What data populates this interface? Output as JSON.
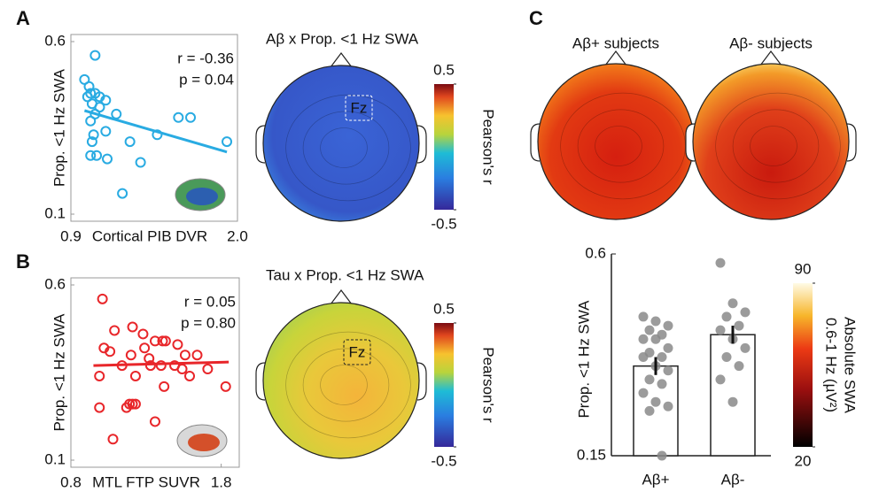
{
  "chart_data": [
    {
      "type": "scatter",
      "panel": "A",
      "xlabel": "Cortical PIB DVR",
      "ylabel": "Prop. <1 Hz SWA",
      "annotations": [
        "r = -0.36",
        "p = 0.04"
      ],
      "color": "#29abe2",
      "xlim": [
        0.9,
        2.0
      ],
      "ylim": [
        0.1,
        0.6
      ],
      "xticks": [
        0.9,
        {
          "value": 2.0,
          "label": "2.0"
        }
      ],
      "yticks": [
        0.6,
        0.1
      ],
      "x": [
        1.06,
        0.99,
        1.02,
        1.03,
        1.01,
        1.06,
        1.09,
        1.13,
        1.04,
        1.09,
        1.2,
        1.06,
        1.03,
        1.13,
        1.29,
        1.47,
        1.61,
        1.69,
        1.05,
        1.04,
        1.03,
        1.07,
        1.14,
        1.36,
        1.24,
        1.93
      ],
      "y": [
        0.56,
        0.49,
        0.47,
        0.45,
        0.44,
        0.45,
        0.44,
        0.43,
        0.42,
        0.41,
        0.39,
        0.39,
        0.37,
        0.34,
        0.31,
        0.33,
        0.38,
        0.38,
        0.33,
        0.31,
        0.27,
        0.27,
        0.26,
        0.25,
        0.16,
        0.31
      ],
      "fit": {
        "x": [
          0.99,
          1.93
        ],
        "y": [
          0.4,
          0.28
        ]
      }
    },
    {
      "type": "topomap",
      "title": "Aβ x Prop. <1 Hz SWA",
      "electrode": "Fz",
      "cbar_label": [
        "Pearson's r"
      ],
      "clim": [
        -0.5,
        0.5
      ],
      "cbar_ticks": [
        0.5,
        -0.5
      ]
    },
    {
      "type": "scatter",
      "panel": "B",
      "xlabel": "MTL FTP SUVR",
      "ylabel": "Prop. <1 Hz SWA",
      "annotations": [
        "r = 0.05",
        "p = 0.80"
      ],
      "color": "#e8262a",
      "xlim": [
        0.8,
        1.92
      ],
      "ylim": [
        0.1,
        0.6
      ],
      "xticks": [
        0.8,
        1.8
      ],
      "yticks": [
        0.6,
        0.1
      ],
      "x": [
        1.01,
        1.21,
        1.09,
        1.28,
        1.41,
        1.43,
        1.36,
        1.51,
        1.02,
        1.29,
        1.06,
        1.2,
        1.56,
        1.64,
        1.32,
        1.14,
        1.33,
        1.49,
        1.4,
        1.54,
        1.59,
        0.99,
        1.23,
        1.71,
        1.21,
        1.17,
        1.19,
        1.23,
        1.42,
        1.83,
        0.99,
        1.36,
        1.08
      ],
      "y": [
        0.56,
        0.48,
        0.47,
        0.46,
        0.44,
        0.44,
        0.44,
        0.43,
        0.42,
        0.42,
        0.41,
        0.4,
        0.4,
        0.4,
        0.39,
        0.37,
        0.37,
        0.37,
        0.37,
        0.36,
        0.34,
        0.34,
        0.34,
        0.36,
        0.26,
        0.25,
        0.26,
        0.26,
        0.31,
        0.31,
        0.25,
        0.21,
        0.16
      ],
      "fit": {
        "x": [
          0.95,
          1.85
        ],
        "y": [
          0.37,
          0.38
        ]
      }
    },
    {
      "type": "topomap",
      "title": "Tau x Prop. <1 Hz SWA",
      "electrode": "Fz",
      "cbar_label": [
        "Pearson's r"
      ],
      "clim": [
        -0.5,
        0.5
      ],
      "cbar_ticks": [
        0.5,
        -0.5
      ]
    },
    {
      "type": "topomap",
      "panel": "C",
      "titles": [
        "Aβ+ subjects",
        "Aβ- subjects"
      ],
      "cbar_label": [
        "Absolute SWA",
        "0.6-1 Hz (µV²)"
      ],
      "clim": [
        20,
        90
      ],
      "cbar_ticks": [
        90,
        20
      ]
    },
    {
      "type": "bar",
      "ylabel": "Prop. <1 Hz SWA",
      "categories": [
        "Aβ+",
        "Aβ-"
      ],
      "values": [
        0.35,
        0.42
      ],
      "errors": [
        0.02,
        0.02
      ],
      "ylim": [
        0.15,
        0.6
      ],
      "yticks": [
        0.6,
        0.15
      ],
      "points": [
        [
          0.46,
          0.45,
          0.44,
          0.43,
          0.42,
          0.41,
          0.41,
          0.39,
          0.38,
          0.37,
          0.37,
          0.35,
          0.34,
          0.32,
          0.31,
          0.29,
          0.27,
          0.26,
          0.25,
          0.15
        ],
        [
          0.58,
          0.49,
          0.47,
          0.46,
          0.44,
          0.43,
          0.41,
          0.39,
          0.37,
          0.35,
          0.32,
          0.27
        ]
      ]
    }
  ]
}
